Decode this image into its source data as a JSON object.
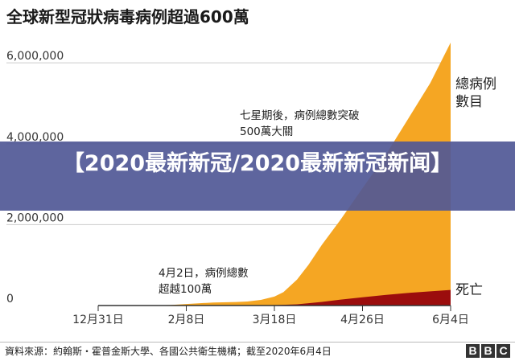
{
  "chart_data": {
    "type": "area",
    "title": "全球新型冠狀病毒病例超過600萬",
    "ylim": [
      0,
      6600000
    ],
    "yticks": [
      {
        "value": 0,
        "label": "0"
      },
      {
        "value": 2000000,
        "label": "2,000,000"
      },
      {
        "value": 4000000,
        "label": "4,000,000"
      },
      {
        "value": 6000000,
        "label": "6,000,000"
      }
    ],
    "xlim": [
      "2019-12-31",
      "2020-06-04"
    ],
    "xticks": [
      {
        "date": "2019-12-31",
        "label": "12月31日"
      },
      {
        "date": "2020-02-08",
        "label": "2月8日"
      },
      {
        "date": "2020-03-18",
        "label": "3月18日"
      },
      {
        "date": "2020-04-26",
        "label": "4月26日"
      },
      {
        "date": "2020-06-04",
        "label": "6月4日"
      }
    ],
    "series": [
      {
        "name": "總病例數目",
        "color": "#f5a623",
        "points": [
          [
            "2019-12-31",
            0
          ],
          [
            "2020-01-20",
            300
          ],
          [
            "2020-02-01",
            12000
          ],
          [
            "2020-02-08",
            37000
          ],
          [
            "2020-02-20",
            76000
          ],
          [
            "2020-03-01",
            88000
          ],
          [
            "2020-03-06",
            100000
          ],
          [
            "2020-03-12",
            140000
          ],
          [
            "2020-03-18",
            220000
          ],
          [
            "2020-03-22",
            330000
          ],
          [
            "2020-03-28",
            640000
          ],
          [
            "2020-04-02",
            1000000
          ],
          [
            "2020-04-08",
            1500000
          ],
          [
            "2020-04-16",
            2100000
          ],
          [
            "2020-04-26",
            2900000
          ],
          [
            "2020-05-06",
            3700000
          ],
          [
            "2020-05-16",
            4600000
          ],
          [
            "2020-05-26",
            5500000
          ],
          [
            "2020-06-04",
            6500000
          ]
        ]
      },
      {
        "name": "死亡",
        "color": "#9b0d0d",
        "points": [
          [
            "2019-12-31",
            0
          ],
          [
            "2020-02-08",
            800
          ],
          [
            "2020-03-01",
            3000
          ],
          [
            "2020-03-18",
            9000
          ],
          [
            "2020-03-28",
            30000
          ],
          [
            "2020-04-08",
            90000
          ],
          [
            "2020-04-16",
            145000
          ],
          [
            "2020-04-26",
            205000
          ],
          [
            "2020-05-06",
            260000
          ],
          [
            "2020-05-16",
            310000
          ],
          [
            "2020-05-26",
            350000
          ],
          [
            "2020-06-04",
            385000
          ]
        ]
      }
    ],
    "annotations": [
      {
        "date": "2020-04-02",
        "value": 1000000,
        "lines": [
          "七星期後，病例總數突破",
          "500萬大關"
        ]
      },
      {
        "date": "2020-03-06",
        "value": 100000,
        "lines": [
          "4月2日，病例總數",
          "超越100萬"
        ]
      }
    ],
    "source": "資料來源：約翰斯・霍普金斯大學、各國公共衛生機構；截至2020年6月4日"
  },
  "overlay": {
    "text": "【2020最新新冠/2020最新新冠新闻】"
  },
  "branding": {
    "logo_letters": [
      "B",
      "B",
      "C"
    ]
  }
}
